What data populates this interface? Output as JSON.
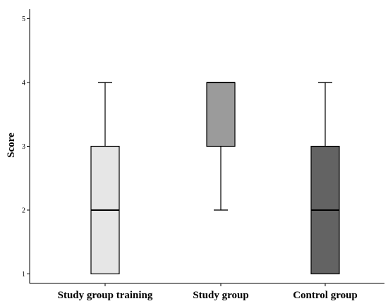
{
  "chart_data": {
    "type": "boxplot",
    "title": "",
    "xlabel": "",
    "ylabel": "Score",
    "ylim": [
      0.85,
      5.15
    ],
    "yticks": [
      "1",
      "2",
      "3",
      "4",
      "5"
    ],
    "grid": false,
    "categories": [
      "Study group training",
      "Study group",
      "Control group"
    ],
    "boxes": [
      {
        "min": 1,
        "q1": 1,
        "median": 2,
        "q3": 3,
        "max": 4,
        "color": "#e6e6e6"
      },
      {
        "min": 2,
        "q1": 3,
        "median": 4,
        "q3": 4,
        "max": 4,
        "color": "#9b9b9b"
      },
      {
        "min": 1,
        "q1": 1,
        "median": 2,
        "q3": 3,
        "max": 4,
        "color": "#636363"
      }
    ]
  }
}
